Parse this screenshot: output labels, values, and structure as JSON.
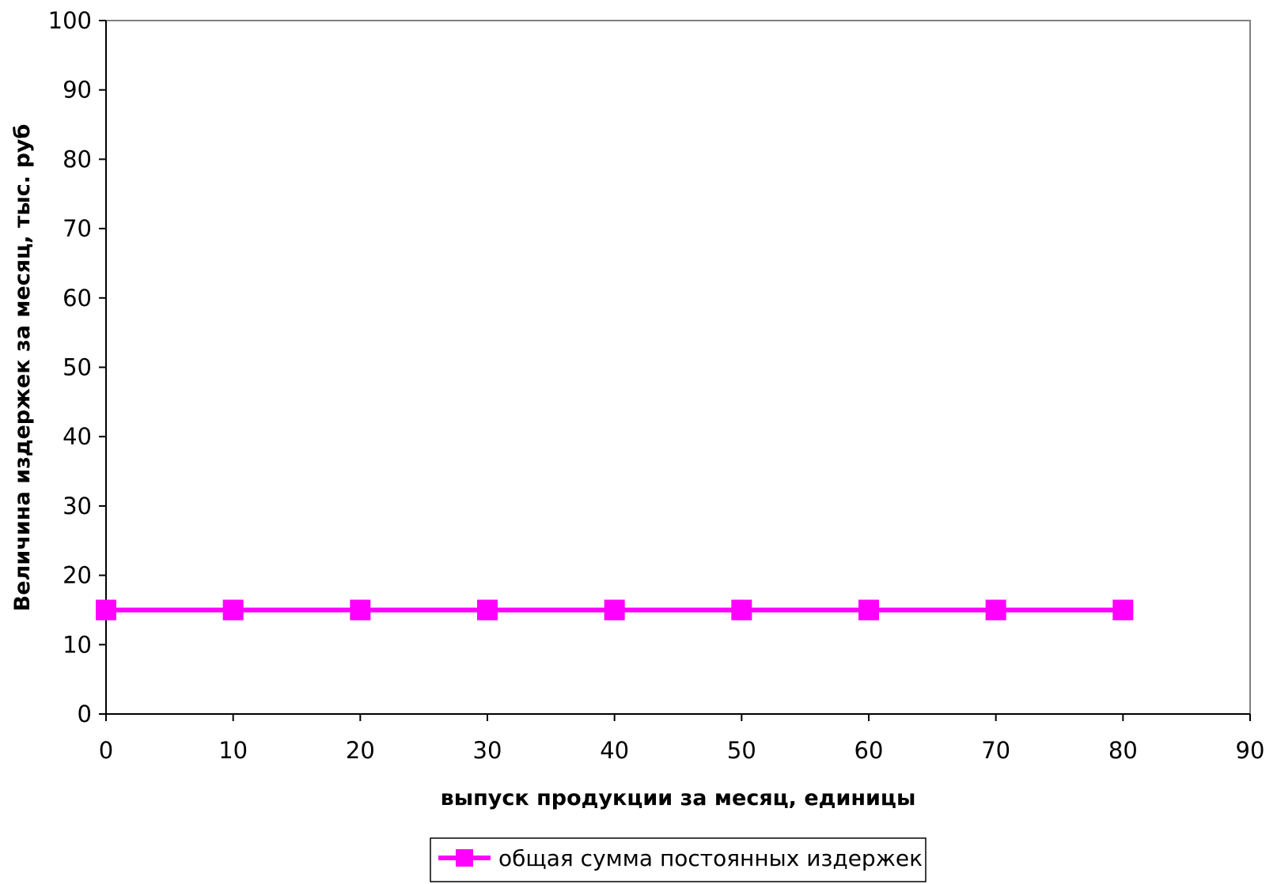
{
  "chart_data": {
    "type": "line",
    "title": "",
    "xlabel": "выпуск продукции за месяц, единицы",
    "ylabel": "Величина издержек за месяц, тыс. руб",
    "xlim": [
      0,
      90
    ],
    "ylim": [
      0,
      100
    ],
    "x_ticks": [
      "0",
      "10",
      "20",
      "30",
      "40",
      "50",
      "60",
      "70",
      "80",
      "90"
    ],
    "y_ticks": [
      "0",
      "10",
      "20",
      "30",
      "40",
      "50",
      "60",
      "70",
      "80",
      "90",
      "100"
    ],
    "grid": false,
    "legend_position": "bottom",
    "series": [
      {
        "name": "общая сумма постоянных издержек",
        "color": "#ff00ff",
        "marker": "square",
        "x": [
          0,
          10,
          20,
          30,
          40,
          50,
          60,
          70,
          80
        ],
        "y": [
          15,
          15,
          15,
          15,
          15,
          15,
          15,
          15,
          15
        ]
      }
    ]
  }
}
